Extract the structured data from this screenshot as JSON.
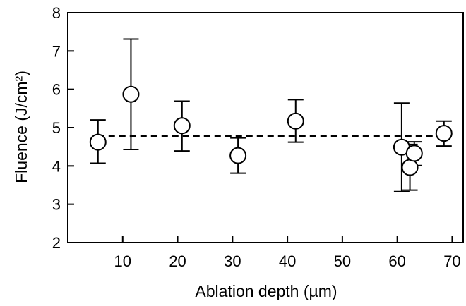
{
  "chart_data": {
    "type": "scatter",
    "title": "",
    "xlabel": "Ablation depth (µm)",
    "ylabel": "Fluence (J/cm²)",
    "xlim": [
      0,
      72
    ],
    "ylim": [
      2,
      8
    ],
    "xticks": [
      10,
      20,
      30,
      40,
      50,
      60,
      70
    ],
    "yticks": [
      2,
      3,
      4,
      5,
      6,
      7,
      8
    ],
    "grid": false,
    "legend": "none",
    "reference_line": {
      "y": 4.78,
      "style": "dashed"
    },
    "points": [
      {
        "x": 5.5,
        "y": 4.62,
        "err_low": 4.07,
        "err_high": 5.2
      },
      {
        "x": 11.5,
        "y": 5.87,
        "err_low": 4.43,
        "err_high": 7.31
      },
      {
        "x": 20.8,
        "y": 5.05,
        "err_low": 4.39,
        "err_high": 5.69
      },
      {
        "x": 31.0,
        "y": 4.27,
        "err_low": 3.81,
        "err_high": 4.73
      },
      {
        "x": 41.5,
        "y": 5.17,
        "err_low": 4.62,
        "err_high": 5.73
      },
      {
        "x": 60.8,
        "y": 4.49,
        "err_low": 3.33,
        "err_high": 5.64
      },
      {
        "x": 62.3,
        "y": 3.96,
        "err_low": 3.37,
        "err_high": 4.56
      },
      {
        "x": 63.1,
        "y": 4.33,
        "err_low": 4.01,
        "err_high": 4.63
      },
      {
        "x": 68.5,
        "y": 4.85,
        "err_low": 4.52,
        "err_high": 5.17
      }
    ],
    "colors": {
      "marker_fill": "#ffffff",
      "marker_stroke": "#000000",
      "line": "#000000"
    }
  }
}
